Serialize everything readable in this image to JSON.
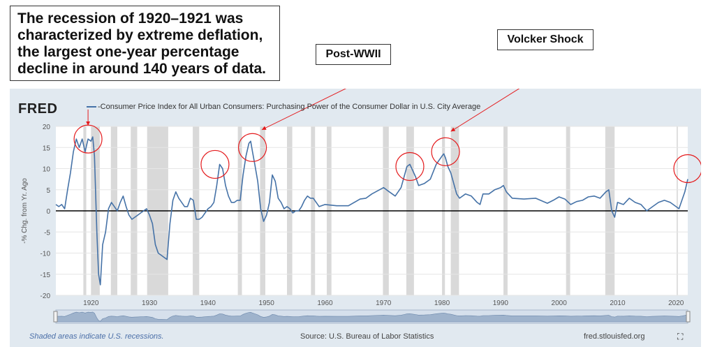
{
  "annotations": {
    "main_callout_lines": [
      "The recession of 1920–1921 was",
      "characterized by extreme deflation,",
      "the largest one-year percentage",
      "decline in around 140 years of data."
    ],
    "post_wwii": "Post-WWII",
    "volcker": "Volcker Shock"
  },
  "header": {
    "logo": "FRED",
    "legend": "-Consumer Price Index for All Urban Consumers: Purchasing Power of the Consumer Dollar in U.S. City Average"
  },
  "footer": {
    "recession_note": "Shaded areas indicate U.S. recessions.",
    "source": "Source: U.S. Bureau of Labor Statistics",
    "url": "fred.stlouisfed.org"
  },
  "colors": {
    "line": "#4572a7",
    "recession": "#d9d9d9",
    "highlight": "#e41a1c",
    "panel": "#e1e9f0"
  },
  "chart_data": {
    "type": "line",
    "ylabel": "-% Chg. from Yr. Ago",
    "xlim": [
      1914,
      2022
    ],
    "ylim": [
      -20,
      20
    ],
    "x_ticks": [
      1920,
      1930,
      1940,
      1950,
      1960,
      1970,
      1980,
      1990,
      2000,
      2010,
      2020
    ],
    "y_ticks": [
      20,
      15,
      10,
      5,
      0,
      -5,
      -10,
      -15,
      -20
    ],
    "recessions": [
      [
        1918.7,
        1919.2
      ],
      [
        1920.0,
        1921.5
      ],
      [
        1923.4,
        1924.5
      ],
      [
        1926.8,
        1927.9
      ],
      [
        1929.6,
        1933.2
      ],
      [
        1937.4,
        1938.5
      ],
      [
        1945.1,
        1945.8
      ],
      [
        1948.9,
        1949.8
      ],
      [
        1953.5,
        1954.4
      ],
      [
        1957.6,
        1958.3
      ],
      [
        1960.3,
        1961.1
      ],
      [
        1969.9,
        1970.9
      ],
      [
        1973.9,
        1975.2
      ],
      [
        1980.0,
        1980.5
      ],
      [
        1981.5,
        1982.9
      ],
      [
        1990.5,
        1991.2
      ],
      [
        2001.2,
        2001.9
      ],
      [
        2007.9,
        2009.5
      ],
      [
        2020.1,
        2020.3
      ]
    ],
    "highlight_circles": [
      {
        "x": 1919.5,
        "y": 17
      },
      {
        "x": 1941.2,
        "y": 11
      },
      {
        "x": 1947.6,
        "y": 15
      },
      {
        "x": 1974.5,
        "y": 10.5
      },
      {
        "x": 1980.6,
        "y": 14
      },
      {
        "x": 2022.0,
        "y": 10
      }
    ],
    "series": [
      {
        "x": [
          1914.0,
          1914.5,
          1915.0,
          1915.5,
          1916.0,
          1916.5,
          1917.0,
          1917.5,
          1918.0,
          1918.5,
          1919.0,
          1919.5,
          1920.0,
          1920.3,
          1920.6,
          1921.0,
          1921.3,
          1921.6,
          1922.0,
          1922.5,
          1923.0,
          1923.5,
          1924.0,
          1924.5,
          1925.0,
          1925.5,
          1926.0,
          1926.5,
          1927.0,
          1927.5,
          1928.0,
          1928.5,
          1929.0,
          1929.5,
          1930.0,
          1930.5,
          1931.0,
          1931.5,
          1932.0,
          1932.5,
          1933.0,
          1933.5,
          1934.0,
          1934.5,
          1935.0,
          1935.5,
          1936.0,
          1936.5,
          1937.0,
          1937.5,
          1938.0,
          1938.5,
          1939.0,
          1939.5,
          1940.0,
          1940.5,
          1941.0,
          1941.5,
          1942.0,
          1942.5,
          1943.0,
          1943.5,
          1944.0,
          1944.5,
          1945.0,
          1945.5,
          1946.0,
          1946.5,
          1947.0,
          1947.3,
          1947.6,
          1948.0,
          1948.5,
          1949.0,
          1949.5,
          1950.0,
          1950.5,
          1951.0,
          1951.5,
          1952.0,
          1952.5,
          1953.0,
          1953.5,
          1954.0,
          1954.5,
          1955.0,
          1955.5,
          1956.0,
          1956.5,
          1957.0,
          1957.5,
          1958.0,
          1958.5,
          1959.0,
          1960.0,
          1962.0,
          1964.0,
          1966.0,
          1967.0,
          1968.0,
          1970.0,
          1971.0,
          1972.0,
          1973.0,
          1973.5,
          1974.0,
          1974.5,
          1975.0,
          1975.5,
          1976.0,
          1977.0,
          1978.0,
          1979.0,
          1980.0,
          1980.3,
          1980.6,
          1981.0,
          1981.5,
          1982.0,
          1982.5,
          1983.0,
          1984.0,
          1985.0,
          1986.0,
          1986.5,
          1987.0,
          1988.0,
          1989.0,
          1990.0,
          1990.5,
          1991.0,
          1992.0,
          1994.0,
          1996.0,
          1998.0,
          1999.0,
          2000.0,
          2001.0,
          2002.0,
          2003.0,
          2004.0,
          2005.0,
          2006.0,
          2007.0,
          2008.0,
          2008.5,
          2009.0,
          2009.5,
          2010.0,
          2011.0,
          2012.0,
          2013.0,
          2014.0,
          2015.0,
          2016.0,
          2017.0,
          2018.0,
          2019.0,
          2020.0,
          2020.5,
          2021.0,
          2021.5,
          2022.0
        ],
        "y": [
          1.5,
          1.0,
          1.5,
          0.5,
          5.0,
          9.0,
          14.0,
          17.0,
          15.0,
          17.0,
          14.0,
          17.0,
          16.5,
          17.5,
          13.0,
          -5.0,
          -15.0,
          -17.5,
          -8.0,
          -5.0,
          0.5,
          2.0,
          1.0,
          0.0,
          2.0,
          3.5,
          1.0,
          -1.0,
          -2.0,
          -1.5,
          -1.0,
          -0.5,
          0.0,
          0.5,
          -1.0,
          -3.0,
          -8.0,
          -10.0,
          -10.5,
          -11.0,
          -11.5,
          -3.0,
          2.5,
          4.5,
          3.0,
          2.0,
          1.0,
          1.0,
          3.0,
          2.5,
          -2.0,
          -2.0,
          -1.5,
          -0.5,
          0.5,
          1.0,
          2.0,
          6.0,
          11.0,
          10.0,
          6.0,
          3.5,
          2.0,
          2.0,
          2.5,
          2.5,
          8.5,
          13.0,
          16.0,
          16.5,
          14.0,
          11.0,
          7.0,
          0.5,
          -2.5,
          -1.0,
          2.0,
          8.5,
          7.0,
          3.0,
          2.0,
          0.5,
          1.0,
          0.5,
          -0.5,
          0.0,
          0.0,
          1.0,
          2.5,
          3.5,
          3.0,
          3.0,
          2.0,
          1.0,
          1.5,
          1.2,
          1.2,
          2.8,
          3.0,
          4.0,
          5.5,
          4.5,
          3.5,
          5.5,
          8.0,
          10.5,
          11.0,
          9.5,
          8.0,
          6.0,
          6.5,
          7.5,
          11.0,
          13.0,
          13.5,
          12.5,
          10.5,
          9.0,
          6.5,
          4.0,
          3.0,
          4.0,
          3.5,
          2.0,
          1.5,
          4.0,
          4.0,
          5.0,
          5.5,
          6.0,
          4.5,
          3.0,
          2.8,
          3.0,
          1.8,
          2.5,
          3.3,
          2.8,
          1.5,
          2.2,
          2.5,
          3.3,
          3.5,
          3.0,
          4.5,
          5.0,
          0.0,
          -1.5,
          2.0,
          1.5,
          3.0,
          2.0,
          1.5,
          0.0,
          1.0,
          2.0,
          2.5,
          2.0,
          1.0,
          0.5,
          2.5,
          4.5,
          7.5
        ]
      }
    ]
  }
}
